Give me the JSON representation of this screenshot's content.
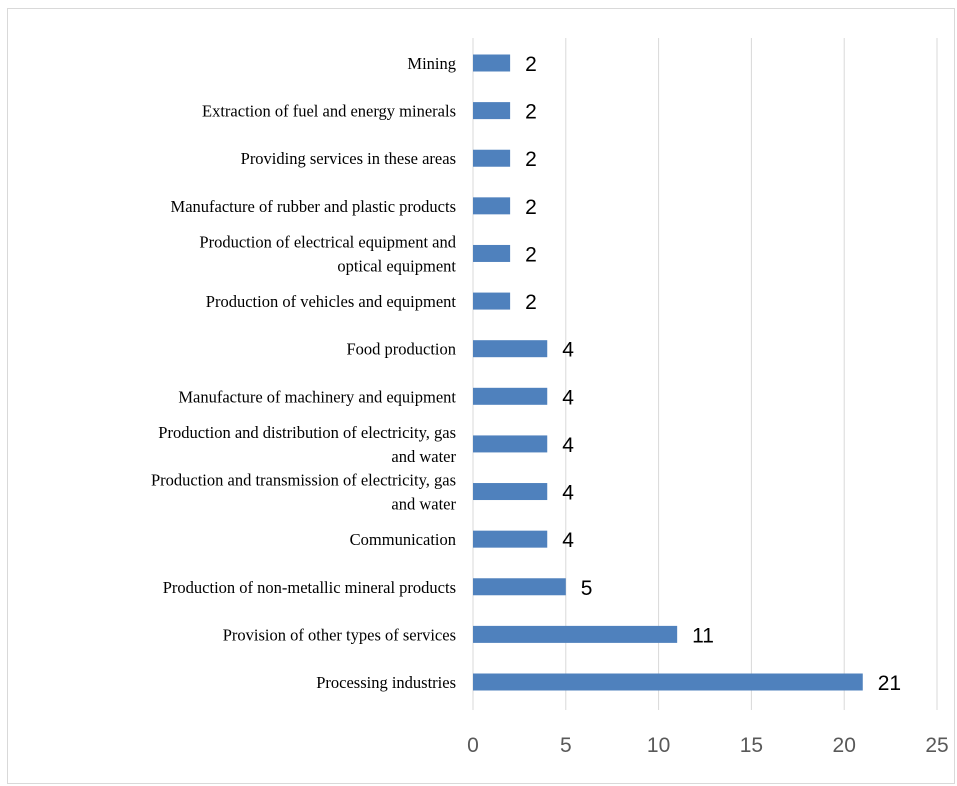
{
  "chart_data": {
    "type": "bar",
    "orientation": "horizontal",
    "categories": [
      "Mining",
      "Extraction of fuel and energy minerals",
      "Providing services in these areas",
      "Manufacture of rubber and plastic products",
      "Production of electrical equipment and optical equipment",
      "Production of vehicles and equipment",
      "Food production",
      "Manufacture of machinery and equipment",
      "Production and distribution of electricity, gas and water",
      "Production and transmission of electricity, gas and water",
      "Communication",
      "Production of non-metallic mineral products",
      "Provision of other types of services",
      "Processing industries"
    ],
    "category_label_lines": [
      [
        "Mining"
      ],
      [
        "Extraction of fuel and energy minerals"
      ],
      [
        "Providing services in these areas"
      ],
      [
        "Manufacture of rubber and plastic products"
      ],
      [
        "Production of electrical equipment and",
        "optical equipment"
      ],
      [
        "Production of vehicles and equipment"
      ],
      [
        "Food production"
      ],
      [
        "Manufacture of machinery and equipment"
      ],
      [
        "Production and distribution of electricity, gas",
        "and water"
      ],
      [
        "Production and transmission of electricity, gas",
        "and water"
      ],
      [
        "Communication"
      ],
      [
        "Production of non-metallic mineral products"
      ],
      [
        "Provision of other types of services"
      ],
      [
        "Processing industries"
      ]
    ],
    "values": [
      2,
      2,
      2,
      2,
      2,
      2,
      4,
      4,
      4,
      4,
      4,
      5,
      11,
      21
    ],
    "data_labels": [
      "2",
      "2",
      "2",
      "2",
      "2",
      "2",
      "4",
      "4",
      "4",
      "4",
      "4",
      "5",
      "11",
      "21"
    ],
    "xlim": [
      0,
      25
    ],
    "xticks": [
      0,
      5,
      10,
      15,
      20,
      25
    ],
    "xtick_labels": [
      "0",
      "5",
      "10",
      "15",
      "20",
      "25"
    ],
    "grid": "vertical",
    "legend": "none",
    "bar_color": "#4f81bd",
    "grid_color": "#d9d9d9",
    "title": "",
    "xlabel": "",
    "ylabel": ""
  }
}
